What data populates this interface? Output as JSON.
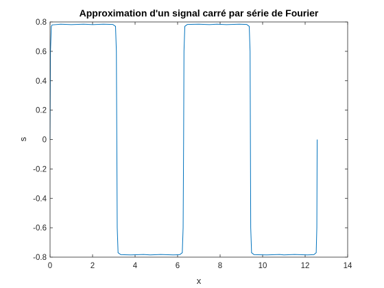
{
  "chart_data": {
    "type": "line",
    "title": "Approximation d'un signal carré par série de Fourier",
    "xlabel": "x",
    "ylabel": "s",
    "xlim": [
      0,
      14
    ],
    "ylim": [
      -0.8,
      0.8
    ],
    "x_ticks": [
      "0",
      "2",
      "4",
      "6",
      "8",
      "10",
      "12",
      "14"
    ],
    "y_ticks": [
      "-0.8",
      "-0.6",
      "-0.4",
      "-0.2",
      "0",
      "0.2",
      "0.4",
      "0.6",
      "0.8"
    ],
    "grid": false,
    "series": [
      {
        "color": "#0072bd",
        "x": [
          0,
          0.02,
          0.06,
          0.1,
          0.5,
          1.0,
          1.57,
          2.0,
          2.5,
          2.95,
          3.08,
          3.12,
          3.14,
          3.16,
          3.2,
          3.33,
          3.8,
          4.4,
          4.71,
          5.2,
          5.8,
          6.1,
          6.22,
          6.26,
          6.2832,
          6.3,
          6.34,
          6.46,
          7.0,
          7.5,
          7.85,
          8.3,
          8.9,
          9.25,
          9.37,
          9.41,
          9.4248,
          9.44,
          9.48,
          9.6,
          10.2,
          10.8,
          11.0,
          11.5,
          12.1,
          12.41,
          12.52,
          12.55,
          12.566
        ],
        "y": [
          0,
          0.6,
          0.77,
          0.78,
          0.785,
          0.782,
          0.785,
          0.782,
          0.785,
          0.783,
          0.77,
          0.6,
          0,
          -0.6,
          -0.77,
          -0.783,
          -0.785,
          -0.782,
          -0.785,
          -0.782,
          -0.785,
          -0.783,
          -0.77,
          -0.6,
          0,
          0.6,
          0.77,
          0.783,
          0.785,
          0.782,
          0.785,
          0.782,
          0.785,
          0.783,
          0.77,
          0.6,
          0,
          -0.6,
          -0.77,
          -0.783,
          -0.785,
          -0.782,
          -0.785,
          -0.782,
          -0.785,
          -0.783,
          -0.77,
          -0.6,
          0
        ]
      }
    ]
  }
}
